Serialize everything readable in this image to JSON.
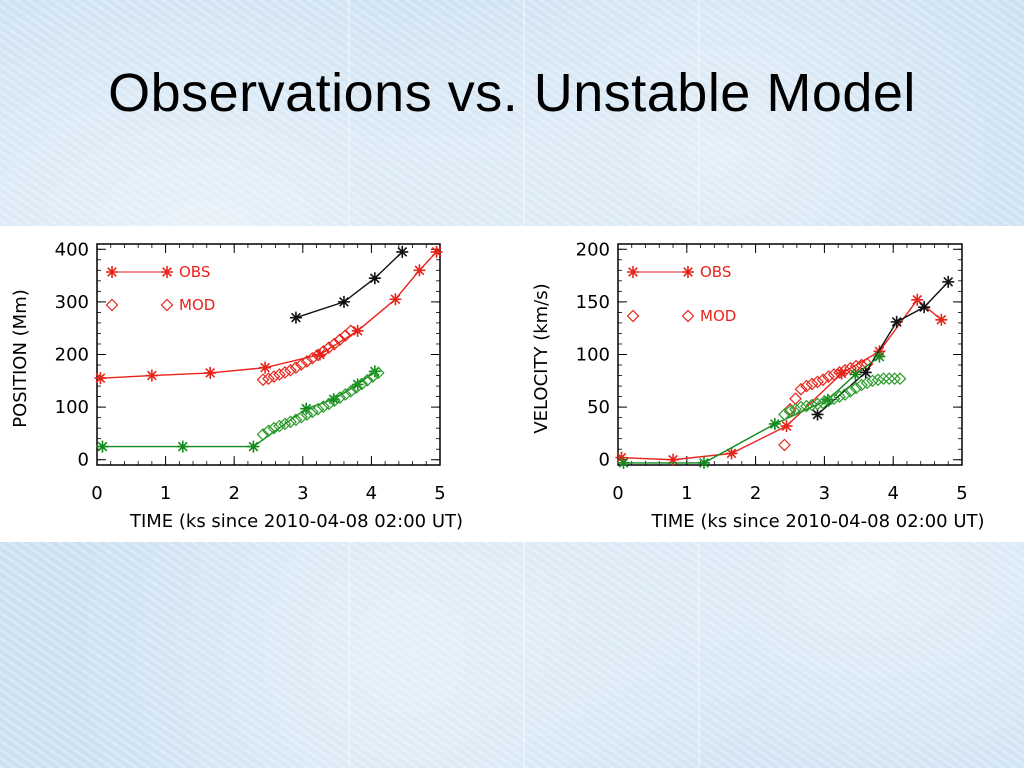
{
  "slide": {
    "title": "Observations vs. Unstable Model"
  },
  "colors": {
    "obs": "#e8231a",
    "mod": "#e8231a",
    "black": "#111111",
    "green": "#118a1c",
    "green_mod": "#2a9a2a"
  },
  "chart_data": [
    {
      "type": "line",
      "xlabel": "TIME (ks since 2010-04-08 02:00 UT)",
      "ylabel": "POSITION (Mm)",
      "xlim": [
        0,
        5
      ],
      "ylim": [
        -10,
        410
      ],
      "xticks": [
        "0",
        "1",
        "2",
        "3",
        "4",
        "5"
      ],
      "yticks": [
        "0",
        "100",
        "200",
        "300",
        "400"
      ],
      "legend": [
        {
          "label": "OBS",
          "marker": "asterisk"
        },
        {
          "label": "MOD",
          "marker": "diamond"
        }
      ],
      "series": [
        {
          "color": "obs",
          "marker": "asterisk",
          "x": [
            0.05,
            0.8,
            1.65,
            2.45,
            3.25,
            3.8,
            4.35,
            4.7,
            4.95
          ],
          "y": [
            155,
            160,
            165,
            175,
            200,
            245,
            305,
            360,
            395
          ]
        },
        {
          "color": "mod",
          "marker": "diamond",
          "x": [
            2.42,
            2.5,
            2.58,
            2.66,
            2.74,
            2.82,
            2.9,
            2.98,
            3.06,
            3.14,
            3.22,
            3.3,
            3.38,
            3.46,
            3.54,
            3.62,
            3.7
          ],
          "y": [
            152,
            154,
            158,
            162,
            166,
            170,
            175,
            181,
            187,
            193,
            199,
            206,
            213,
            220,
            228,
            236,
            245
          ]
        },
        {
          "color": "black",
          "marker": "asterisk",
          "x": [
            2.9,
            3.6,
            4.05,
            4.45
          ],
          "y": [
            270,
            300,
            345,
            395
          ]
        },
        {
          "color": "green",
          "marker": "asterisk",
          "x": [
            0.08,
            1.25,
            2.28,
            3.05,
            3.45,
            3.8,
            4.05
          ],
          "y": [
            25,
            25,
            25,
            97,
            115,
            143,
            168
          ]
        },
        {
          "color": "green_mod",
          "marker": "diamond",
          "x": [
            2.42,
            2.5,
            2.58,
            2.66,
            2.74,
            2.82,
            2.9,
            2.98,
            3.06,
            3.14,
            3.22,
            3.3,
            3.38,
            3.46,
            3.54,
            3.62,
            3.7,
            3.78,
            3.86,
            3.94,
            4.02,
            4.1
          ],
          "y": [
            48,
            55,
            60,
            64,
            68,
            72,
            76,
            81,
            86,
            91,
            96,
            101,
            106,
            112,
            118,
            124,
            130,
            137,
            144,
            151,
            158,
            165
          ]
        }
      ]
    },
    {
      "type": "line",
      "xlabel": "TIME (ks since 2010-04-08 02:00 UT)",
      "ylabel": "VELOCITY (km/s)",
      "xlim": [
        0,
        5
      ],
      "ylim": [
        -5,
        205
      ],
      "xticks": [
        "0",
        "1",
        "2",
        "3",
        "4",
        "5"
      ],
      "yticks": [
        "0",
        "50",
        "100",
        "150",
        "200"
      ],
      "legend": [
        {
          "label": "OBS",
          "marker": "asterisk"
        },
        {
          "label": "MOD",
          "marker": "diamond"
        }
      ],
      "series": [
        {
          "color": "obs",
          "marker": "asterisk",
          "x": [
            0.05,
            0.8,
            1.65,
            2.45,
            3.25,
            3.8,
            4.35,
            4.7
          ],
          "y": [
            2,
            0,
            6,
            32,
            82,
            103,
            152,
            133
          ]
        },
        {
          "color": "mod",
          "marker": "diamond",
          "x": [
            2.42,
            2.5,
            2.58,
            2.66,
            2.74,
            2.82,
            2.9,
            2.98,
            3.06,
            3.14,
            3.22,
            3.3,
            3.38,
            3.46,
            3.54,
            3.62
          ],
          "y": [
            14,
            48,
            58,
            67,
            70,
            72,
            74,
            76,
            79,
            81,
            83,
            85,
            87,
            89,
            90,
            91
          ]
        },
        {
          "color": "black",
          "marker": "asterisk",
          "x": [
            2.9,
            3.6,
            4.05,
            4.45,
            4.8
          ],
          "y": [
            43,
            83,
            131,
            145,
            169
          ]
        },
        {
          "color": "green",
          "marker": "asterisk",
          "x": [
            0.08,
            1.25,
            2.28,
            3.05,
            3.45,
            3.8
          ],
          "y": [
            -3,
            -3,
            34,
            57,
            81,
            98
          ]
        },
        {
          "color": "green_mod",
          "marker": "diamond",
          "x": [
            2.42,
            2.5,
            2.58,
            2.66,
            2.74,
            2.82,
            2.9,
            2.98,
            3.06,
            3.14,
            3.22,
            3.3,
            3.38,
            3.46,
            3.54,
            3.62,
            3.7,
            3.78,
            3.86,
            3.94,
            4.02,
            4.1
          ],
          "y": [
            43,
            46,
            48,
            50,
            51,
            52,
            53,
            54,
            56,
            58,
            60,
            62,
            65,
            68,
            71,
            73,
            75,
            76,
            77,
            77,
            77,
            77
          ]
        }
      ]
    }
  ]
}
